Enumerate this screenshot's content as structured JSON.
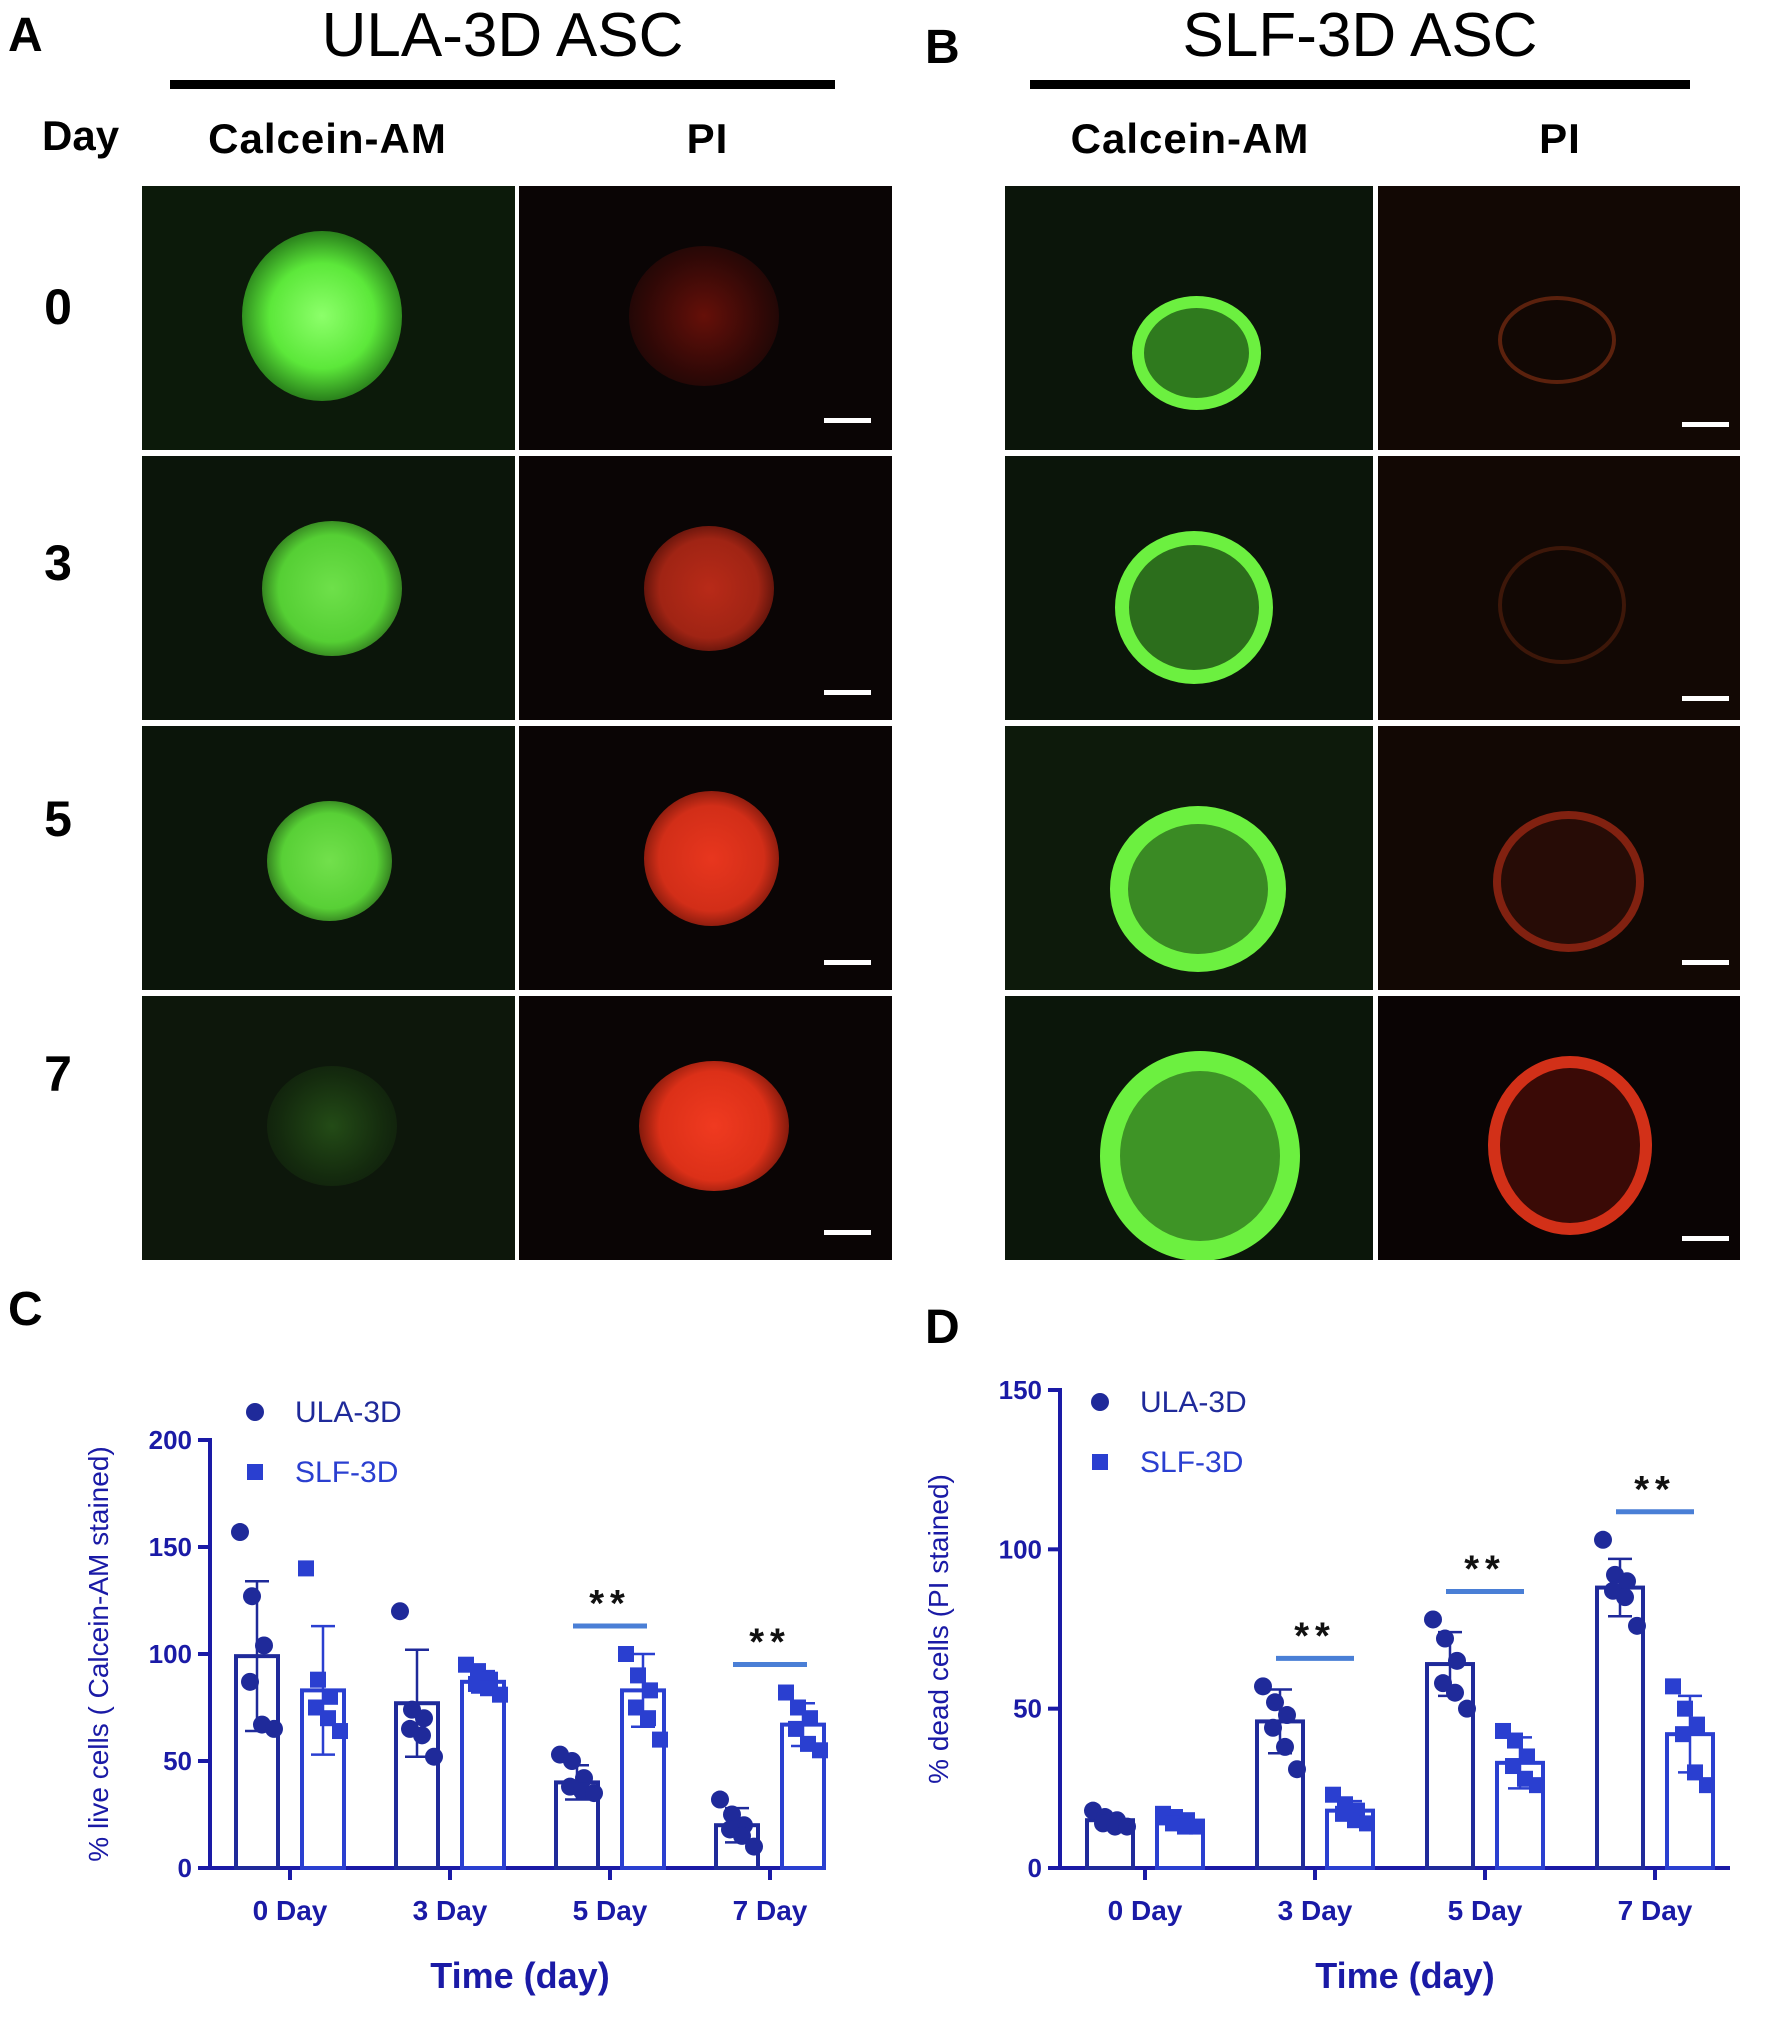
{
  "panel_A": {
    "letter": "A",
    "title": "ULA-3D ASC",
    "day_header": "Day",
    "col_headers": [
      "Calcein-AM",
      "PI"
    ],
    "days": [
      "0",
      "3",
      "5",
      "7"
    ]
  },
  "panel_B": {
    "letter": "B",
    "title": "SLF-3D ASC",
    "col_headers": [
      "Calcein-AM",
      "PI"
    ]
  },
  "panel_C": {
    "letter": "C"
  },
  "panel_D": {
    "letter": "D"
  },
  "colors": {
    "axis": "#1a1aa6",
    "ula": "#1f2a9a",
    "slf": "#2a3fd0",
    "sig_line": "#4a7fd6",
    "calcein": "#5cf23a",
    "pi": "#f0321e"
  },
  "chart_data": [
    {
      "type": "bar",
      "panel": "C",
      "categories": [
        "0 Day",
        "3 Day",
        "5 Day",
        "7 Day"
      ],
      "xlabel": "Time   (day)",
      "ylabel": "% live cells ( Calcein-AM stained)",
      "ylim": [
        0,
        200
      ],
      "yticks": [
        0,
        50,
        100,
        150,
        200
      ],
      "legend": "top-left",
      "series": [
        {
          "name": "ULA-3D",
          "marker": "circle",
          "values": [
            99,
            77,
            40,
            20
          ],
          "err": [
            35,
            25,
            8,
            8
          ],
          "points": [
            [
              157,
              127,
              104,
              87,
              67,
              65
            ],
            [
              120,
              74,
              70,
              65,
              62,
              52
            ],
            [
              53,
              50,
              42,
              38,
              36,
              35
            ],
            [
              32,
              25,
              20,
              18,
              15,
              10
            ]
          ]
        },
        {
          "name": "SLF-3D",
          "marker": "square",
          "values": [
            83,
            87,
            83,
            67
          ],
          "err": [
            30,
            5,
            17,
            10
          ],
          "points": [
            [
              140,
              88,
              80,
              75,
              70,
              64
            ],
            [
              95,
              92,
              88,
              86,
              84,
              81
            ],
            [
              100,
              90,
              83,
              75,
              70,
              60
            ],
            [
              82,
              75,
              70,
              65,
              58,
              55
            ]
          ]
        }
      ],
      "significance": [
        {
          "category": "5 Day",
          "label": "**"
        },
        {
          "category": "7 Day",
          "label": "**"
        }
      ]
    },
    {
      "type": "bar",
      "panel": "D",
      "categories": [
        "0 Day",
        "3 Day",
        "5 Day",
        "7 Day"
      ],
      "xlabel": "Time   (day)",
      "ylabel": "% dead cells (PI stained)",
      "ylim": [
        0,
        150
      ],
      "yticks": [
        0,
        50,
        100,
        150
      ],
      "legend": "top-left",
      "series": [
        {
          "name": "ULA-3D",
          "marker": "circle",
          "values": [
            15,
            46,
            64,
            88
          ],
          "err": [
            2,
            10,
            10,
            9
          ],
          "points": [
            [
              18,
              16,
              15,
              14,
              13,
              13
            ],
            [
              57,
              52,
              48,
              44,
              38,
              31
            ],
            [
              78,
              72,
              65,
              58,
              55,
              50
            ],
            [
              103,
              92,
              90,
              87,
              85,
              76
            ]
          ]
        },
        {
          "name": "SLF-3D",
          "marker": "square",
          "values": [
            14,
            18,
            33,
            42
          ],
          "err": [
            2,
            3,
            8,
            12
          ],
          "points": [
            [
              17,
              16,
              15,
              14,
              13,
              13
            ],
            [
              23,
              20,
              18,
              17,
              15,
              14
            ],
            [
              43,
              40,
              35,
              32,
              28,
              26
            ],
            [
              57,
              50,
              45,
              42,
              30,
              26
            ]
          ]
        }
      ],
      "significance": [
        {
          "category": "3 Day",
          "label": "**"
        },
        {
          "category": "5 Day",
          "label": "**"
        },
        {
          "category": "7 Day",
          "label": "**"
        }
      ]
    }
  ]
}
